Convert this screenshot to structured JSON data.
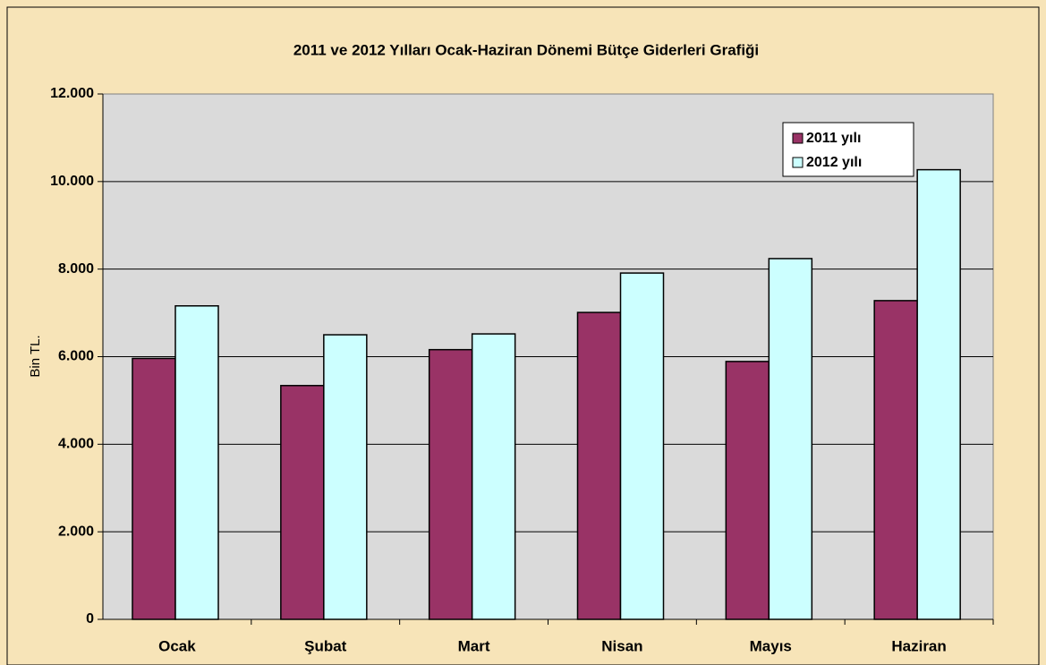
{
  "chart_data": {
    "type": "bar",
    "title": "2011 ve 2012 Yılları Ocak-Haziran Dönemi Bütçe Giderleri Grafiği",
    "y_label": "Bin TL.",
    "categories": [
      "Ocak",
      "Şubat",
      "Mart",
      "Nisan",
      "Mayıs",
      "Haziran"
    ],
    "series": [
      {
        "name": "2011 yılı",
        "color": "#993366",
        "values": [
          5960,
          5340,
          6160,
          7010,
          5890,
          7280
        ]
      },
      {
        "name": "2012 yılı",
        "color": "#ccffff",
        "values": [
          7160,
          6500,
          6520,
          7910,
          8240,
          10270
        ]
      }
    ],
    "ylim": [
      0,
      12000
    ],
    "yticks": [
      0,
      {
        "value": 2000,
        "label": "2.000"
      },
      {
        "value": 4000,
        "label": "4.000"
      },
      {
        "value": 6000,
        "label": "6.000"
      },
      {
        "value": 8000,
        "label": "8.000"
      },
      {
        "value": 10000,
        "label": "10.000"
      },
      {
        "value": 12000,
        "label": "12.000"
      }
    ],
    "grid": true,
    "legend": "top-right"
  }
}
